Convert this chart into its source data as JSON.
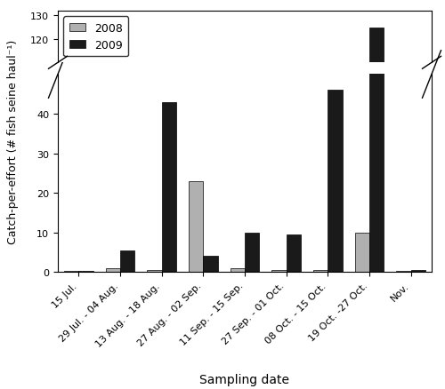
{
  "categories": [
    "15 Jul.",
    "29 Jul. - 04 Aug.",
    "13 Aug. - 18 Aug.",
    "27 Aug. - 02 Sep.",
    "11 Sep. - 15 Sep.",
    "27 Sep. - 01 Oct.",
    "08 Oct. - 15 Oct.",
    "19 Oct. -27 Oct.",
    "Nov."
  ],
  "values_2008": [
    0.2,
    1.0,
    0.5,
    23.0,
    1.0,
    0.5,
    0.5,
    10.0,
    0.2
  ],
  "values_2009": [
    0.2,
    5.5,
    43.0,
    4.0,
    10.0,
    9.5,
    46.0,
    125.0,
    0.5
  ],
  "bar_color_2008": "#b0b0b0",
  "bar_color_2009": "#1a1a1a",
  "ylabel": "Catch-per-effort (# fish seine haul⁻¹)",
  "xlabel": "Sampling date",
  "yticks_lower": [
    0,
    10,
    20,
    30,
    40
  ],
  "yticks_upper": [
    120,
    130
  ],
  "bar_width": 0.35,
  "legend_labels": [
    "2008",
    "2009"
  ],
  "figsize": [
    5.0,
    4.39
  ],
  "dpi": 100,
  "background_color": "#ffffff"
}
